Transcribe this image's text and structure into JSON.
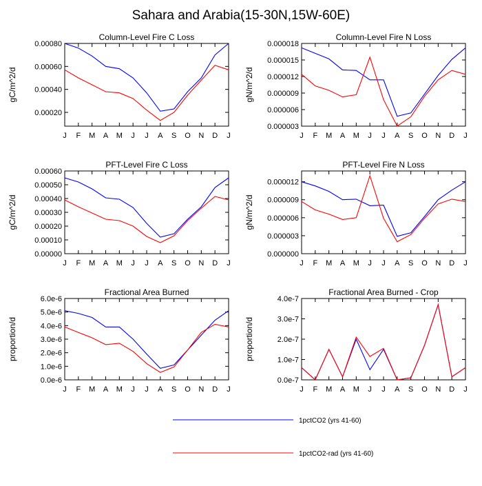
{
  "figure": {
    "title": "Sahara and Arabia(15-30N,15W-60E)"
  },
  "legend": {
    "placement": "bottom-center",
    "entries": [
      {
        "label": "1pctCO2 (yrs 41-60)",
        "color": "#0000ff"
      },
      {
        "label": "1pctCO2-rad (yrs 41-60)",
        "color": "#ff0000"
      }
    ]
  },
  "chart_data": [
    {
      "type": "line",
      "title": "Column-Level Fire C Loss",
      "ylabel": "gC/m^2/d",
      "xlabel": "",
      "categories": [
        "J",
        "F",
        "M",
        "A",
        "M",
        "J",
        "J",
        "A",
        "S",
        "O",
        "N",
        "D",
        "J"
      ],
      "ylim": [
        8e-05,
        0.0008
      ],
      "yticks": [
        0.0002,
        0.0004,
        0.0006,
        0.0008
      ],
      "ytick_labels": [
        "0.00020",
        "0.00040",
        "0.00060",
        "0.00080"
      ],
      "series": [
        {
          "name": "1pctCO2 (yrs 41-60)",
          "color": "#0000ff",
          "values": [
            0.0008,
            0.00076,
            0.00069,
            0.0006,
            0.00058,
            0.0005,
            0.00037,
            0.00021,
            0.00023,
            0.00038,
            0.0005,
            0.0007,
            0.0008
          ]
        },
        {
          "name": "1pctCO2-rad (yrs 41-60)",
          "color": "#ff0000",
          "values": [
            0.00057,
            0.0005,
            0.00044,
            0.00038,
            0.00037,
            0.00032,
            0.00022,
            0.00013,
            0.0002,
            0.00035,
            0.00048,
            0.00061,
            0.00057
          ]
        }
      ]
    },
    {
      "type": "line",
      "title": "Column-Level Fire N Loss",
      "ylabel": "gN/m^2/d",
      "xlabel": "",
      "categories": [
        "J",
        "F",
        "M",
        "A",
        "M",
        "J",
        "J",
        "A",
        "S",
        "O",
        "N",
        "D",
        "J"
      ],
      "ylim": [
        3e-06,
        1.8e-05
      ],
      "yticks": [
        3e-06,
        6e-06,
        9e-06,
        1.2e-05,
        1.5e-05,
        1.8e-05
      ],
      "ytick_labels": [
        "0.000003",
        "0.000006",
        "0.000009",
        "0.000012",
        "0.000015",
        "0.000018"
      ],
      "series": [
        {
          "name": "1pctCO2 (yrs 41-60)",
          "color": "#0000ff",
          "values": [
            1.72e-05,
            1.62e-05,
            1.52e-05,
            1.32e-05,
            1.31e-05,
            1.14e-05,
            1.14e-05,
            4.8e-06,
            5.4e-06,
            8.8e-06,
            1.22e-05,
            1.51e-05,
            1.72e-05
          ]
        },
        {
          "name": "1pctCO2-rad (yrs 41-60)",
          "color": "#ff0000",
          "values": [
            1.24e-05,
            1.03e-05,
            9.5e-06,
            8.3e-06,
            8.7e-06,
            1.55e-05,
            7.8e-06,
            3e-06,
            4.7e-06,
            8.4e-06,
            1.14e-05,
            1.31e-05,
            1.24e-05
          ]
        }
      ]
    },
    {
      "type": "line",
      "title": "PFT-Level Fire C Loss",
      "ylabel": "gC/m^2/d",
      "xlabel": "",
      "categories": [
        "J",
        "F",
        "M",
        "A",
        "M",
        "J",
        "J",
        "A",
        "S",
        "O",
        "N",
        "D",
        "J"
      ],
      "ylim": [
        0,
        0.0006
      ],
      "yticks": [
        0,
        0.0001,
        0.0002,
        0.0003,
        0.0004,
        0.0005,
        0.0006
      ],
      "ytick_labels": [
        "0.00000",
        "0.00010",
        "0.00020",
        "0.00030",
        "0.00040",
        "0.00050",
        "0.00060"
      ],
      "series": [
        {
          "name": "1pctCO2 (yrs 41-60)",
          "color": "#0000ff",
          "values": [
            0.00055,
            0.00052,
            0.00047,
            0.000405,
            0.000395,
            0.000335,
            0.00022,
            0.00012,
            0.000145,
            0.00025,
            0.00034,
            0.00048,
            0.00055
          ]
        },
        {
          "name": "1pctCO2-rad (yrs 41-60)",
          "color": "#ff0000",
          "values": [
            0.00039,
            0.00034,
            0.000295,
            0.00025,
            0.00024,
            0.0002,
            0.000125,
            8e-05,
            0.00013,
            0.00024,
            0.00033,
            0.000415,
            0.00039
          ]
        }
      ]
    },
    {
      "type": "line",
      "title": "PFT-Level Fire N Loss",
      "ylabel": "gN/m^2/d",
      "xlabel": "",
      "categories": [
        "J",
        "F",
        "M",
        "A",
        "M",
        "J",
        "J",
        "A",
        "S",
        "O",
        "N",
        "D",
        "J"
      ],
      "ylim": [
        0,
        1.38e-05
      ],
      "yticks": [
        0,
        3e-06,
        6e-06,
        9e-06,
        1.2e-05
      ],
      "ytick_labels": [
        "0.000000",
        "0.000003",
        "0.000006",
        "0.000009",
        "0.000012"
      ],
      "series": [
        {
          "name": "1pctCO2 (yrs 41-60)",
          "color": "#0000ff",
          "values": [
            1.2e-05,
            1.13e-05,
            1.04e-05,
            9e-06,
            9.1e-06,
            8e-06,
            8.1e-06,
            2.9e-06,
            3.5e-06,
            6.2e-06,
            9e-06,
            1.06e-05,
            1.2e-05
          ]
        },
        {
          "name": "1pctCO2-rad (yrs 41-60)",
          "color": "#ff0000",
          "values": [
            8.7e-06,
            7.3e-06,
            6.6e-06,
            5.7e-06,
            6e-06,
            1.3e-05,
            5.9e-06,
            2e-06,
            3.2e-06,
            5.9e-06,
            8.3e-06,
            9.1e-06,
            8.7e-06
          ]
        }
      ]
    },
    {
      "type": "line",
      "title": "Fractional Area Burned",
      "ylabel": "proportion/d",
      "xlabel": "",
      "categories": [
        "J",
        "F",
        "M",
        "A",
        "M",
        "J",
        "J",
        "A",
        "S",
        "O",
        "N",
        "D",
        "J"
      ],
      "ylim": [
        0,
        6e-06
      ],
      "yticks": [
        0,
        1e-06,
        2e-06,
        3e-06,
        4e-06,
        5e-06,
        6e-06
      ],
      "ytick_labels": [
        "0.0e-6",
        "1.0e-6",
        "2.0e-6",
        "3.0e-6",
        "4.0e-6",
        "5.0e-6",
        "6.0e-6"
      ],
      "series": [
        {
          "name": "1pctCO2 (yrs 41-60)",
          "color": "#0000ff",
          "values": [
            5.1e-06,
            4.9e-06,
            4.6e-06,
            3.9e-06,
            3.9e-06,
            3e-06,
            1.9e-06,
            8.5e-07,
            1.1e-06,
            2.2e-06,
            3.3e-06,
            4.4e-06,
            5.1e-06
          ]
        },
        {
          "name": "1pctCO2-rad (yrs 41-60)",
          "color": "#ff0000",
          "values": [
            3.9e-06,
            3.5e-06,
            3.1e-06,
            2.6e-06,
            2.7e-06,
            2.1e-06,
            1.2e-06,
            5.5e-07,
            9.5e-07,
            2.2e-06,
            3.5e-06,
            4.1e-06,
            3.9e-06
          ]
        }
      ]
    },
    {
      "type": "line",
      "title": "Fractional Area Burned - Crop",
      "ylabel": "proportion/d",
      "xlabel": "",
      "categories": [
        "J",
        "F",
        "M",
        "A",
        "M",
        "J",
        "J",
        "A",
        "S",
        "O",
        "N",
        "D",
        "J"
      ],
      "ylim": [
        0,
        4e-07
      ],
      "yticks": [
        0,
        1e-07,
        2e-07,
        3e-07,
        4e-07
      ],
      "ytick_labels": [
        "0.0e-7",
        "1.0e-7",
        "2.0e-7",
        "3.0e-7",
        "4.0e-7"
      ],
      "series": [
        {
          "name": "1pctCO2 (yrs 41-60)",
          "color": "#0000ff",
          "values": [
            6e-08,
            0.0,
            1.5e-07,
            1.5e-08,
            2e-07,
            5e-08,
            1.5e-07,
            0.0,
            1e-08,
            1.7e-07,
            3.7e-07,
            1.5e-08,
            6e-08
          ]
        },
        {
          "name": "1pctCO2-rad (yrs 41-60)",
          "color": "#ff0000",
          "values": [
            6e-08,
            0.0,
            1.5e-07,
            1.5e-08,
            2.1e-07,
            1.15e-07,
            1.55e-07,
            0.0,
            1e-08,
            1.7e-07,
            3.7e-07,
            1.5e-08,
            6e-08
          ]
        }
      ]
    }
  ]
}
